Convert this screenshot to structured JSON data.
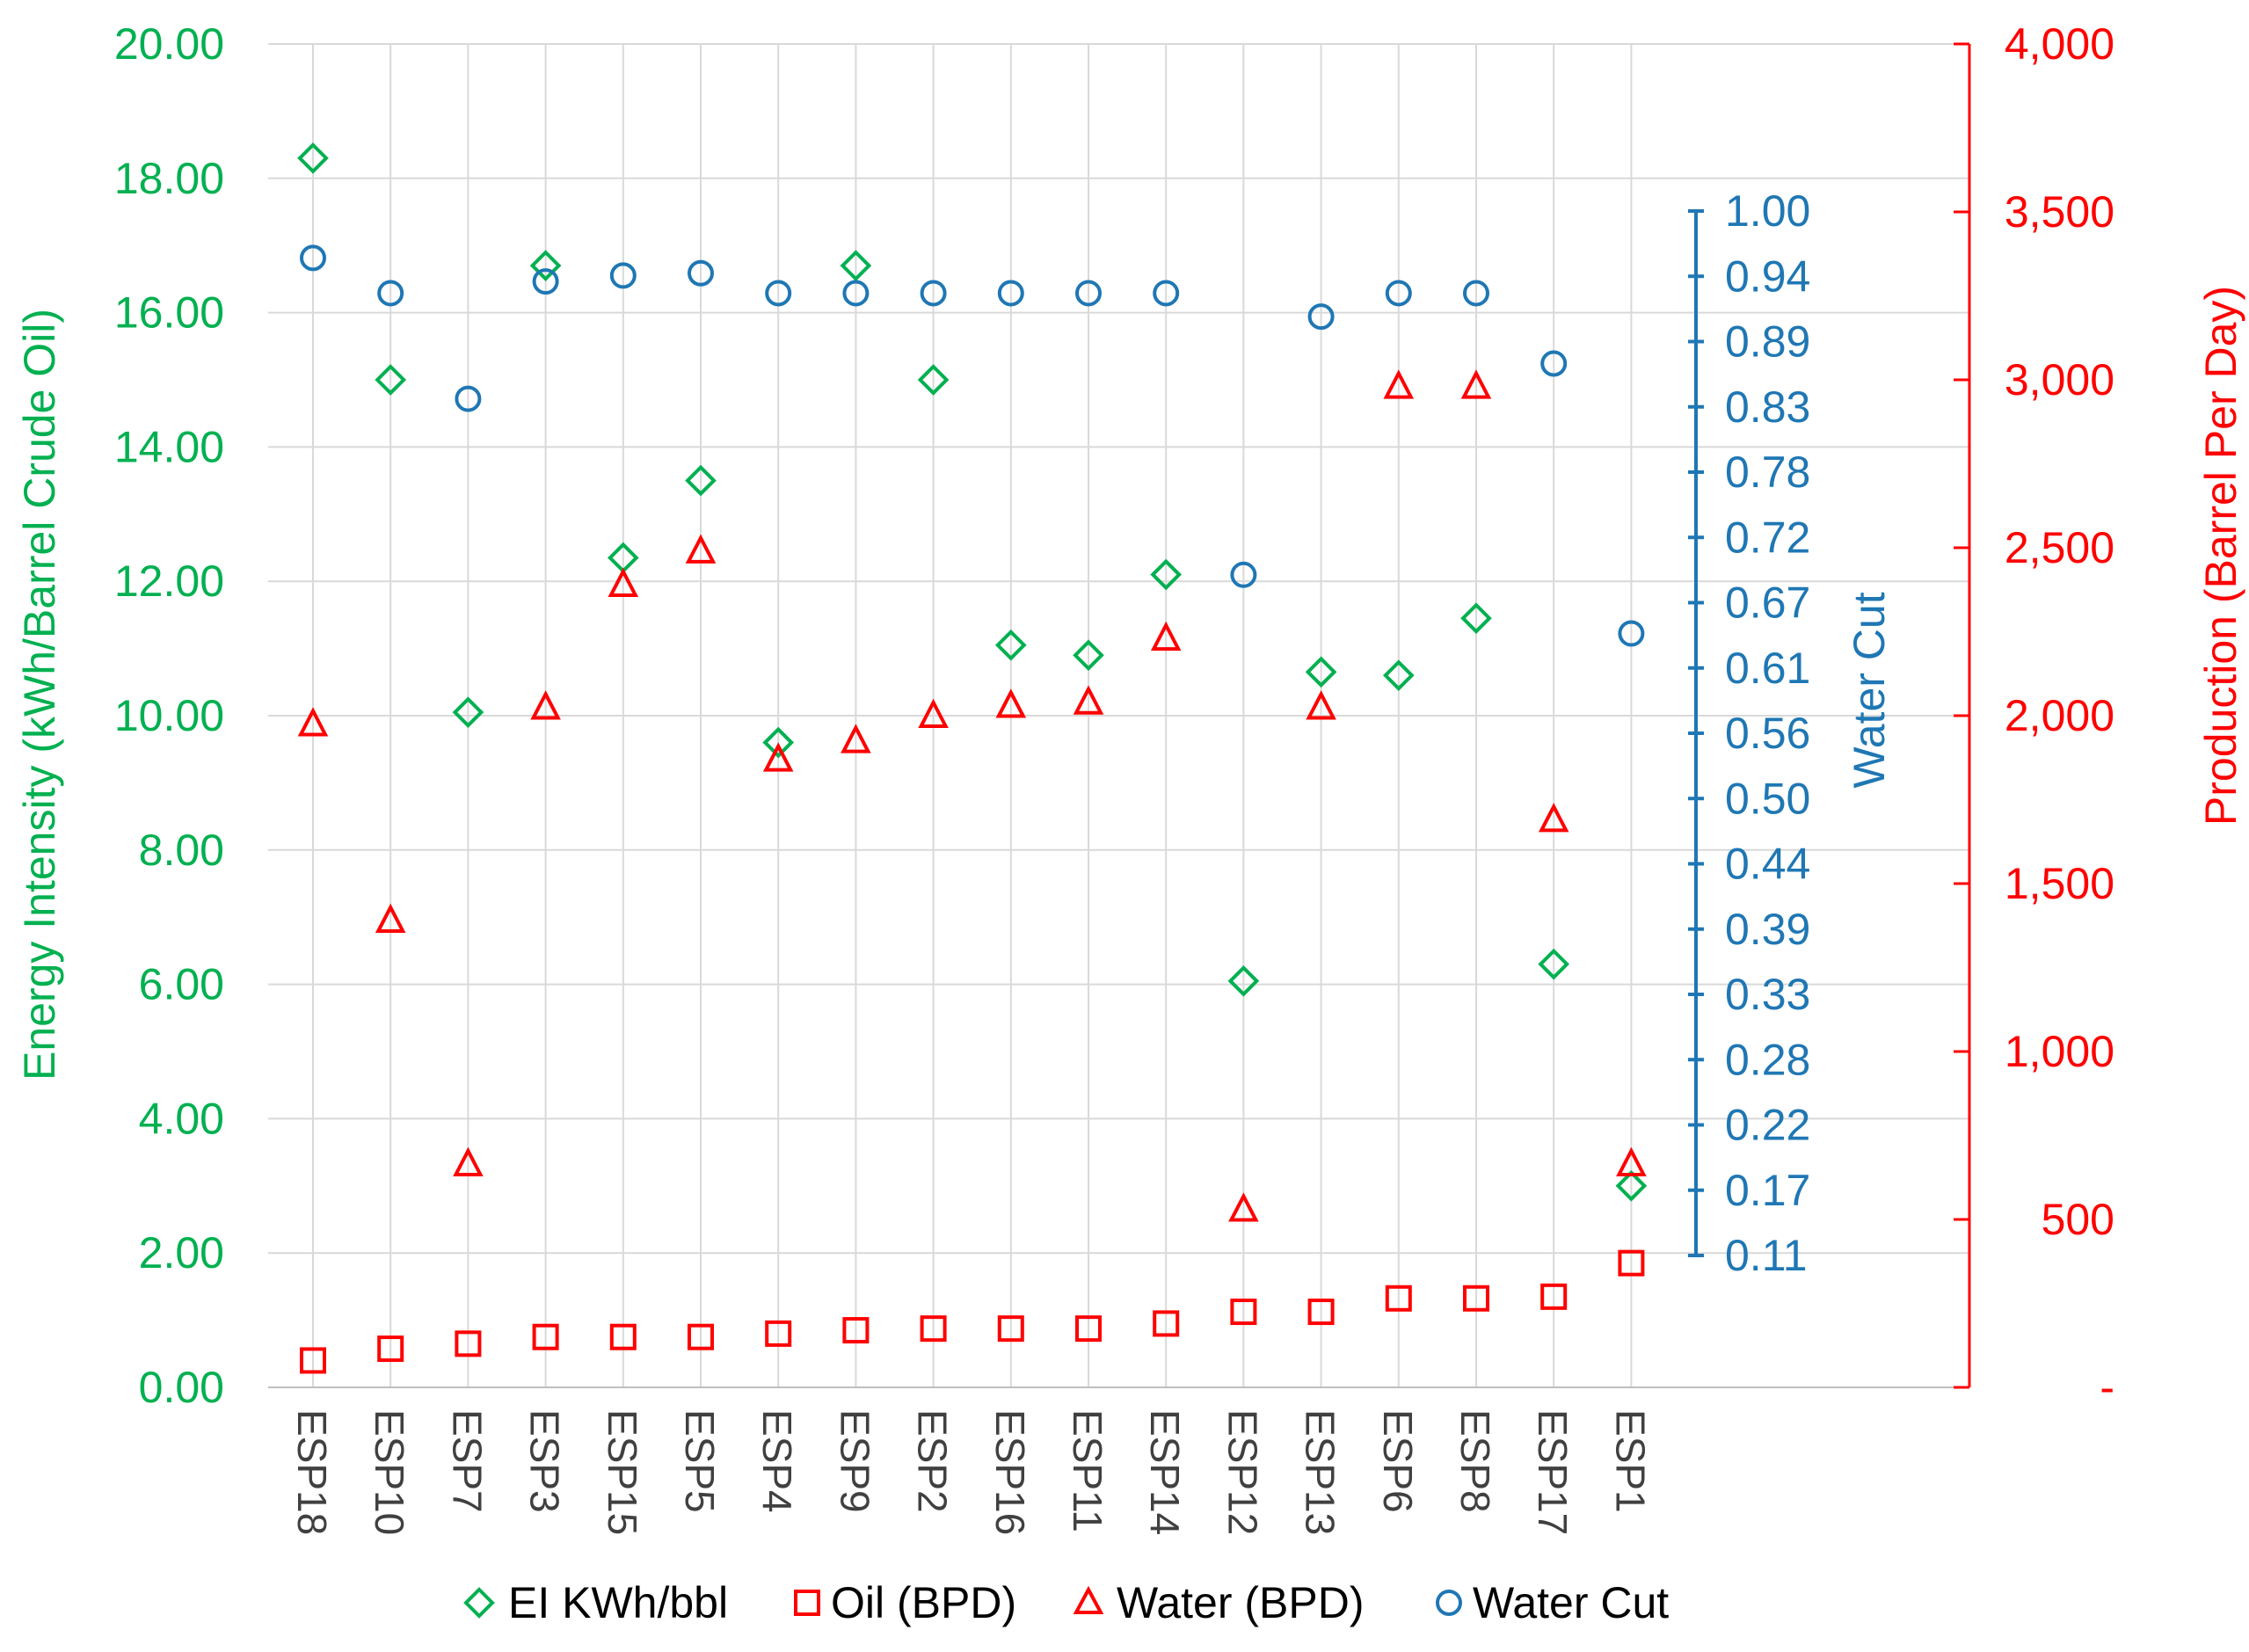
{
  "chart_data": {
    "type": "scatter",
    "categories": [
      "ESP18",
      "ESP10",
      "ESP7",
      "ESP3",
      "ESP15",
      "ESP5",
      "ESP4",
      "ESP9",
      "ESP2",
      "ESP16",
      "ESP11",
      "ESP14",
      "ESP12",
      "ESP13",
      "ESP6",
      "ESP8",
      "ESP17",
      "ESP1"
    ],
    "axes": {
      "left": {
        "label": "Energy Intensity (kWh/Barrel Crude Oil)",
        "range": [
          0,
          20
        ],
        "ticks": [
          "0.00",
          "2.00",
          "4.00",
          "6.00",
          "8.00",
          "10.00",
          "12.00",
          "14.00",
          "16.00",
          "18.00",
          "20.00"
        ],
        "color": "#00b050"
      },
      "right": {
        "label": "Production (Barrel Per Day)",
        "range": [
          0,
          4000
        ],
        "ticks": [
          "-",
          "500",
          "1,000",
          "1,500",
          "2,000",
          "2,500",
          "3,000",
          "3,500",
          "4,000"
        ],
        "color": "#ff0000"
      },
      "water_cut": {
        "label": "Water Cut",
        "range": [
          0.11,
          1.0
        ],
        "ticks": [
          "0.11",
          "0.17",
          "0.22",
          "0.28",
          "0.33",
          "0.39",
          "0.44",
          "0.50",
          "0.56",
          "0.61",
          "0.67",
          "0.72",
          "0.78",
          "0.83",
          "0.89",
          "0.94",
          "1.00"
        ],
        "color": "#1f77b4"
      }
    },
    "series": [
      {
        "name": "EI KWh/bbl",
        "axis": "left",
        "marker": "diamond",
        "color": "#00b050",
        "values": [
          18.3,
          15.0,
          10.05,
          16.7,
          12.35,
          13.5,
          9.6,
          16.7,
          15.0,
          11.05,
          10.9,
          12.1,
          6.05,
          10.65,
          10.6,
          11.45,
          6.3,
          3.0
        ]
      },
      {
        "name": "Oil (BPD)",
        "axis": "right",
        "marker": "square",
        "color": "#ff0000",
        "values": [
          80,
          115,
          130,
          150,
          150,
          150,
          160,
          170,
          175,
          175,
          175,
          190,
          225,
          225,
          265,
          265,
          270,
          370
        ]
      },
      {
        "name": "Water (BPD)",
        "axis": "right",
        "marker": "triangle",
        "color": "#ff0000",
        "values": [
          1975,
          1390,
          665,
          2025,
          2390,
          2490,
          1870,
          1925,
          2000,
          2030,
          2040,
          2230,
          530,
          2025,
          2980,
          2980,
          1690,
          665
        ]
      },
      {
        "name": "Water Cut",
        "axis": "water_cut",
        "marker": "circle",
        "color": "#1f77b4",
        "values": [
          0.96,
          0.93,
          0.84,
          0.94,
          0.945,
          0.947,
          0.93,
          0.93,
          0.93,
          0.93,
          0.93,
          0.93,
          0.69,
          0.91,
          0.93,
          0.93,
          0.87,
          0.64
        ]
      }
    ],
    "legend": {
      "placement": "bottom",
      "items": [
        "EI KWh/bbl",
        "Oil (BPD)",
        "Water (BPD)",
        "Water Cut"
      ]
    },
    "grid": true
  }
}
